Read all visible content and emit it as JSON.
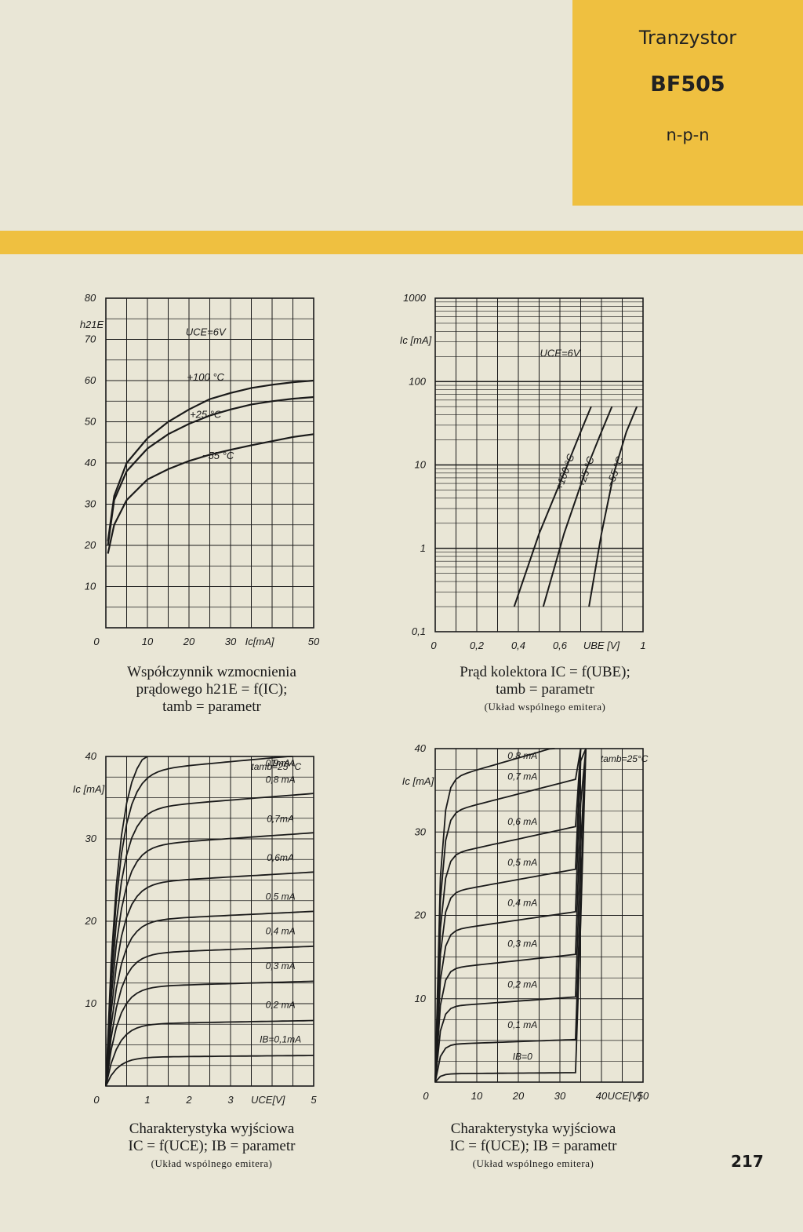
{
  "header": {
    "title": "Tranzystor",
    "model": "BF505",
    "type": "n-p-n",
    "accent_color": "#efc040"
  },
  "page_number": "217",
  "chart_data": [
    {
      "id": "gain",
      "type": "line",
      "ylabel": "h21E",
      "xlabel": "Ic[mA]",
      "x_ticks": [
        "0",
        "10",
        "20",
        "30",
        "50"
      ],
      "y_ticks": [
        "80",
        "70",
        "60",
        "50",
        "40",
        "30",
        "20",
        "10"
      ],
      "xlim": [
        0,
        50
      ],
      "ylim": [
        0,
        80
      ],
      "annotations": [
        "UCE=6V"
      ],
      "series": [
        {
          "name": "+100 °C",
          "x": [
            0.5,
            2,
            5,
            10,
            15,
            20,
            25,
            30,
            35,
            40,
            45,
            50
          ],
          "y": [
            21,
            32,
            40,
            46,
            50,
            53,
            55.5,
            57,
            58.2,
            59,
            59.6,
            60
          ]
        },
        {
          "name": "+25 °C",
          "x": [
            0.5,
            2,
            5,
            10,
            15,
            20,
            25,
            30,
            35,
            40,
            45,
            50
          ],
          "y": [
            20,
            31,
            38,
            43.5,
            47,
            49.5,
            51.5,
            53,
            54.2,
            55,
            55.6,
            56
          ]
        },
        {
          "name": "−55 °C",
          "x": [
            0.5,
            2,
            5,
            10,
            15,
            20,
            25,
            30,
            35,
            40,
            45,
            50
          ],
          "y": [
            18,
            25,
            31,
            36,
            38.5,
            40.5,
            42,
            43.2,
            44.3,
            45.3,
            46.3,
            47
          ]
        }
      ],
      "caption": [
        "Współczynnik wzmocnienia",
        "prądowego h21E = f(IC);",
        "tamb = parametr"
      ]
    },
    {
      "id": "ic_ube",
      "type": "line",
      "ylabel": "Ic [mA]",
      "xlabel": "UBE [V]",
      "y_scale": "log",
      "x_ticks": [
        "0",
        "0,2",
        "0,4",
        "0,6",
        "1"
      ],
      "y_ticks": [
        "1000",
        "100",
        "10",
        "1",
        "0,1"
      ],
      "xlim": [
        0,
        1
      ],
      "ylim": [
        0.1,
        1000
      ],
      "annotations": [
        "UCE=6V"
      ],
      "series": [
        {
          "name": "+100 °C",
          "x": [
            0.38,
            0.5,
            0.62,
            0.7,
            0.75
          ],
          "y": [
            0.2,
            1.5,
            8,
            25,
            50
          ]
        },
        {
          "name": "+25 °C",
          "x": [
            0.52,
            0.62,
            0.72,
            0.8,
            0.85
          ],
          "y": [
            0.2,
            1.5,
            8,
            25,
            50
          ]
        },
        {
          "name": "−55 °C",
          "x": [
            0.74,
            0.8,
            0.86,
            0.92,
            0.97
          ],
          "y": [
            0.2,
            1.5,
            8,
            25,
            50
          ]
        }
      ],
      "caption": [
        "Prąd kolektora IC = f(UBE);",
        "tamb = parametr",
        "(Układ wspólnego emitera)"
      ]
    },
    {
      "id": "output1",
      "type": "line",
      "ylabel": "Ic [mA]",
      "xlabel": "UCE[V]",
      "x_ticks": [
        "0",
        "1",
        "2",
        "3",
        "5"
      ],
      "y_ticks": [
        "40",
        "30",
        "20",
        "10"
      ],
      "xlim": [
        0,
        5
      ],
      "ylim": [
        0,
        40
      ],
      "annotations": [
        "tamb=25 °C"
      ],
      "series": [
        {
          "name": "IB=0,1mA",
          "sat": 3.5
        },
        {
          "name": "0,2 mA",
          "sat": 7.5
        },
        {
          "name": "0,3 mA",
          "sat": 12
        },
        {
          "name": "0,4 mA",
          "sat": 16
        },
        {
          "name": "0,5 mA",
          "sat": 20
        },
        {
          "name": "0,6mA",
          "sat": 24.5
        },
        {
          "name": "0,7mA",
          "sat": 29
        },
        {
          "name": "0,8 mA",
          "sat": 33.5
        },
        {
          "name": "0,9 mA",
          "sat": 38
        },
        {
          "name": "1mA",
          "sat": 41
        }
      ],
      "caption": [
        "Charakterystyka wyjściowa",
        "IC = f(UCE);   IB = parametr",
        "(Układ wspólnego emitera)"
      ]
    },
    {
      "id": "output2",
      "type": "line",
      "ylabel": "Ic [mA]",
      "xlabel": "UCE[V]",
      "x_ticks": [
        "0",
        "10",
        "20",
        "30",
        "40",
        "50"
      ],
      "y_ticks": [
        "40",
        "30",
        "20",
        "10"
      ],
      "xlim": [
        0,
        50
      ],
      "ylim": [
        0,
        40
      ],
      "annotations": [
        "tamb=25°C"
      ],
      "series": [
        {
          "name": "IB=0",
          "sat": 1
        },
        {
          "name": "0,1 mA",
          "sat": 4.5
        },
        {
          "name": "0,2 mA",
          "sat": 9
        },
        {
          "name": "0,3 mA",
          "sat": 13.5
        },
        {
          "name": "0,4 mA",
          "sat": 18
        },
        {
          "name": "0,5 mA",
          "sat": 22.5
        },
        {
          "name": "0,6 mA",
          "sat": 27
        },
        {
          "name": "0,7 mA",
          "sat": 32
        },
        {
          "name": "0,8 mA",
          "sat": 36
        }
      ],
      "caption": [
        "Charakterystyka wyjściowa",
        "IC = f(UCE);   IB = parametr",
        "(Układ wspólnego emitera)"
      ]
    }
  ]
}
